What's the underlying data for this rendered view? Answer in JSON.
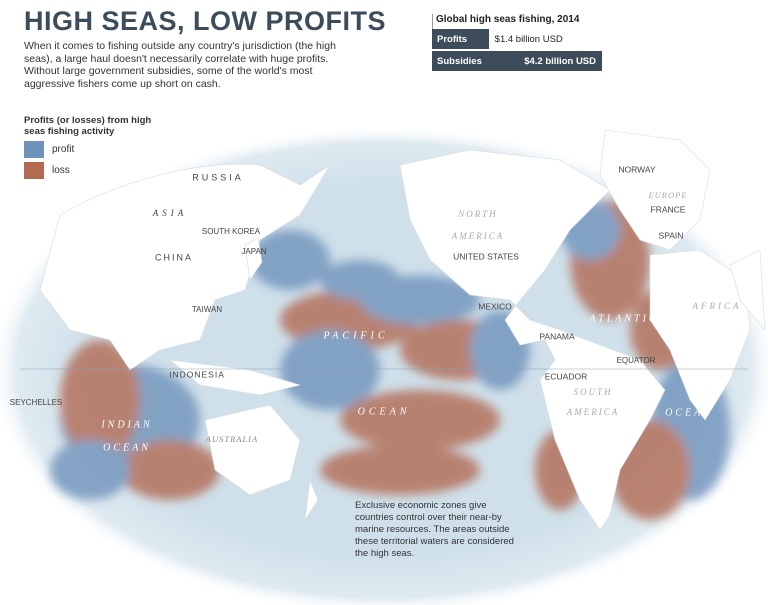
{
  "header": {
    "title": "HIGH SEAS, LOW PROFITS",
    "description": "When it comes to fishing outside any country's jurisdiction (the high seas), a large haul doesn't necessarily correlate with huge profits. Without large government subsidies, some of the world's most aggressive fishers come up short on cash."
  },
  "chart_data": {
    "type": "bar",
    "title": "Global high seas fishing, 2014",
    "categories": [
      "Profits",
      "Subsidies"
    ],
    "values": [
      1.4,
      4.2
    ],
    "value_labels": [
      "$1.4 billion USD",
      "$4.2 billion USD"
    ],
    "color": "#3d4c5a"
  },
  "legend": {
    "title": "Profits (or losses) from high seas fishing activity",
    "items": [
      {
        "label": "profit",
        "color": "#6f93bb"
      },
      {
        "label": "loss",
        "color": "#b26b52"
      }
    ]
  },
  "map": {
    "labels": [
      "RUSSIA",
      "ASIA",
      "CHINA",
      "SOUTH KOREA",
      "JAPAN",
      "TAIWAN",
      "INDONESIA",
      "SEYCHELLES",
      "INDIAN",
      "OCEAN",
      "AUSTRALIA",
      "PACIFIC",
      "OCEAN",
      "NORTH",
      "AMERICA",
      "UNITED STATES",
      "MEXICO",
      "PANAMA",
      "ECUADOR",
      "EQUATOR",
      "SOUTH",
      "AMERICA",
      "ATLANTIC",
      "OCEAN",
      "NORWAY",
      "EUROPE",
      "FRANCE",
      "SPAIN",
      "AFRICA"
    ],
    "note": "Exclusive economic zones give countries control over their near-by marine resources. The areas outside these territorial waters are considered the high seas."
  }
}
